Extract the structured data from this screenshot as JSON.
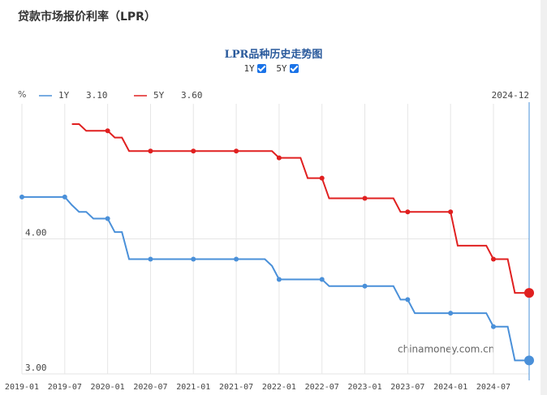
{
  "header": {
    "title": "贷款市场报价利率（LPR）"
  },
  "chart_data": {
    "type": "line",
    "title": "LPR品种历史走势图",
    "y_label": "%",
    "watermark": "chinamoney.com.cn",
    "x": [
      "2019-01",
      "2019-02",
      "2019-03",
      "2019-04",
      "2019-05",
      "2019-06",
      "2019-07",
      "2019-08",
      "2019-09",
      "2019-10",
      "2019-11",
      "2019-12",
      "2020-01",
      "2020-02",
      "2020-03",
      "2020-04",
      "2020-05",
      "2020-06",
      "2020-07",
      "2020-08",
      "2020-09",
      "2020-10",
      "2020-11",
      "2020-12",
      "2021-01",
      "2021-02",
      "2021-03",
      "2021-04",
      "2021-05",
      "2021-06",
      "2021-07",
      "2021-08",
      "2021-09",
      "2021-10",
      "2021-11",
      "2021-12",
      "2022-01",
      "2022-02",
      "2022-03",
      "2022-04",
      "2022-05",
      "2022-06",
      "2022-07",
      "2022-08",
      "2022-09",
      "2022-10",
      "2022-11",
      "2022-12",
      "2023-01",
      "2023-02",
      "2023-03",
      "2023-04",
      "2023-05",
      "2023-06",
      "2023-07",
      "2023-08",
      "2023-09",
      "2023-10",
      "2023-11",
      "2023-12",
      "2024-01",
      "2024-02",
      "2024-03",
      "2024-04",
      "2024-05",
      "2024-06",
      "2024-07",
      "2024-08",
      "2024-09",
      "2024-10",
      "2024-11",
      "2024-12"
    ],
    "xticks": [
      "2019-01",
      "2019-07",
      "2020-01",
      "2020-07",
      "2021-01",
      "2021-07",
      "2022-01",
      "2022-07",
      "2023-01",
      "2023-07",
      "2024-01",
      "2024-07"
    ],
    "ylim": [
      3.0,
      5.0
    ],
    "yticks": [
      {
        "value": 3,
        "label": "3.00"
      },
      {
        "value": 4,
        "label": "4.00"
      }
    ],
    "grid": true,
    "series": [
      {
        "name": "1Y",
        "color": "#4a90d9",
        "current_label": "3.10",
        "values": [
          4.31,
          4.31,
          4.31,
          4.31,
          4.31,
          4.31,
          4.31,
          4.25,
          4.2,
          4.2,
          4.15,
          4.15,
          4.15,
          4.05,
          4.05,
          3.85,
          3.85,
          3.85,
          3.85,
          3.85,
          3.85,
          3.85,
          3.85,
          3.85,
          3.85,
          3.85,
          3.85,
          3.85,
          3.85,
          3.85,
          3.85,
          3.85,
          3.85,
          3.85,
          3.85,
          3.8,
          3.7,
          3.7,
          3.7,
          3.7,
          3.7,
          3.7,
          3.7,
          3.65,
          3.65,
          3.65,
          3.65,
          3.65,
          3.65,
          3.65,
          3.65,
          3.65,
          3.65,
          3.55,
          3.55,
          3.45,
          3.45,
          3.45,
          3.45,
          3.45,
          3.45,
          3.45,
          3.45,
          3.45,
          3.45,
          3.45,
          3.35,
          3.35,
          3.35,
          3.1,
          3.1,
          3.1
        ]
      },
      {
        "name": "5Y",
        "color": "#e02020",
        "current_label": "3.60",
        "values": [
          null,
          null,
          null,
          null,
          null,
          null,
          null,
          4.85,
          4.85,
          4.8,
          4.8,
          4.8,
          4.8,
          4.75,
          4.75,
          4.65,
          4.65,
          4.65,
          4.65,
          4.65,
          4.65,
          4.65,
          4.65,
          4.65,
          4.65,
          4.65,
          4.65,
          4.65,
          4.65,
          4.65,
          4.65,
          4.65,
          4.65,
          4.65,
          4.65,
          4.65,
          4.6,
          4.6,
          4.6,
          4.6,
          4.45,
          4.45,
          4.45,
          4.3,
          4.3,
          4.3,
          4.3,
          4.3,
          4.3,
          4.3,
          4.3,
          4.3,
          4.3,
          4.2,
          4.2,
          4.2,
          4.2,
          4.2,
          4.2,
          4.2,
          4.2,
          3.95,
          3.95,
          3.95,
          3.95,
          3.95,
          3.85,
          3.85,
          3.85,
          3.6,
          3.6,
          3.6
        ]
      }
    ]
  }
}
